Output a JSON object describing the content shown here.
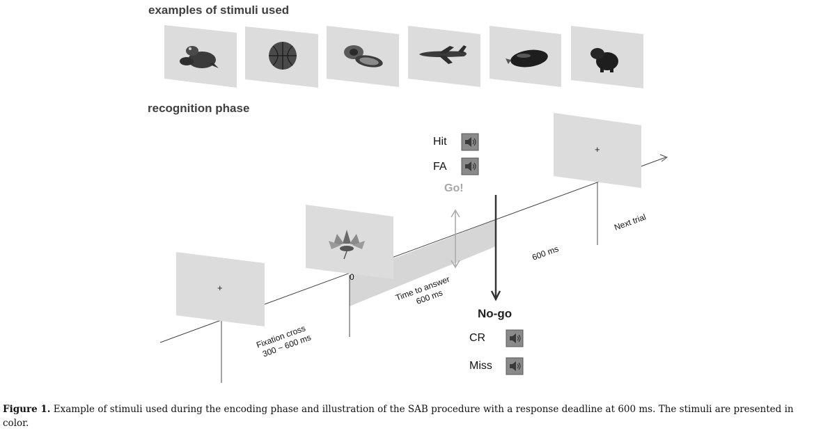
{
  "headings": {
    "stimuli": "examples of stimuli used",
    "recognition": "recognition phase"
  },
  "stimuli": [
    "frog-icon",
    "basketball-icon",
    "avocado-icon",
    "airplane-icon",
    "eggplant-icon",
    "capybara-icon"
  ],
  "timeline": {
    "fixation_symbol": "+",
    "next_symbol": "+",
    "onset_label": "0",
    "fixation_label": [
      "Fixation cross",
      "300 ~ 600 ms"
    ],
    "answer_label": [
      "Time to answer",
      "600 ms"
    ],
    "gap_label": "600 ms",
    "next_label": "Next trial",
    "stimulus_icon": "lotus-flower-icon"
  },
  "responses": {
    "go": {
      "label": "Go!",
      "hit": "Hit",
      "fa": "FA"
    },
    "nogo": {
      "label": "No-go",
      "cr": "CR",
      "miss": "Miss"
    },
    "sound_icon": "speaker-icon"
  },
  "caption": {
    "figure_label": "Figure 1.",
    "text": " Example of stimuli used during the encoding phase and illustration of the SAB procedure with a response deadline at 600 ms. The stimuli are presented in color."
  }
}
